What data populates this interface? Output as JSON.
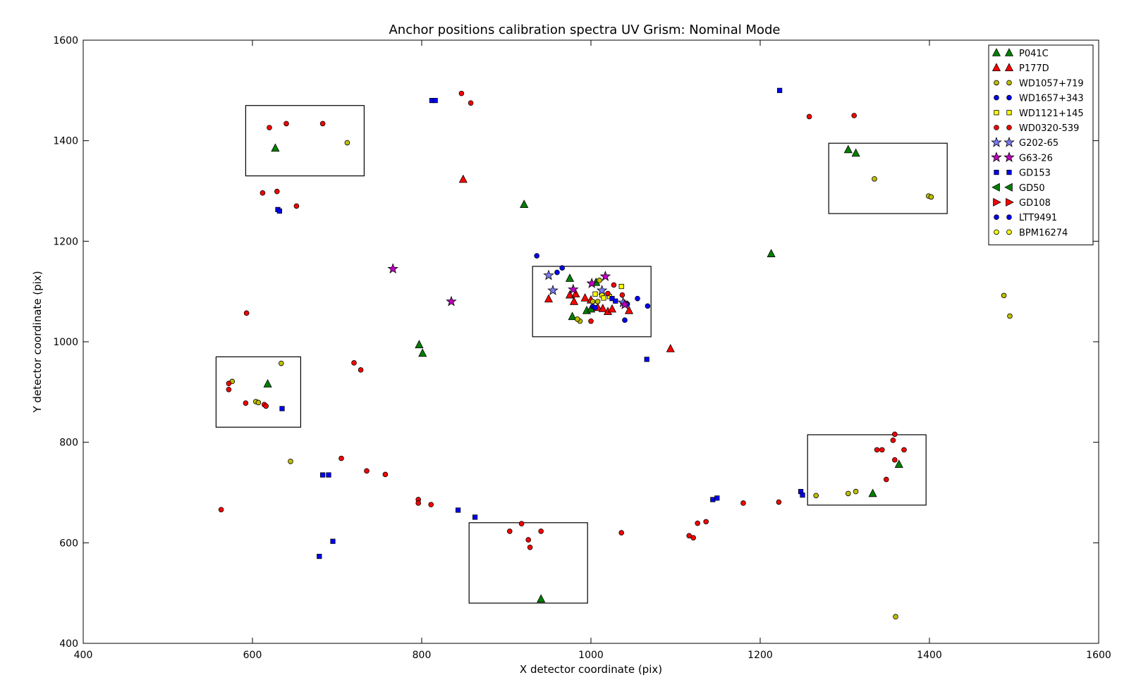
{
  "chart_data": {
    "type": "scatter",
    "title": "Anchor positions calibration spectra UV Grism: Nominal Mode",
    "xlabel": "X detector coordinate (pix)",
    "ylabel": "Y detector coordinate (pix)",
    "xlim": [
      400,
      1600
    ],
    "ylim": [
      400,
      1600
    ],
    "xticks": [
      400,
      600,
      800,
      1000,
      1200,
      1400,
      1600
    ],
    "yticks": [
      400,
      600,
      800,
      1000,
      1200,
      1400,
      1600
    ],
    "grid": false,
    "legend_position": "top-right",
    "series": [
      {
        "name": "P041C",
        "marker": "triangle-up",
        "color": "#008000",
        "points": [
          [
            627,
            1385
          ],
          [
            921,
            1273
          ],
          [
            1213,
            1175
          ],
          [
            1304,
            1382
          ],
          [
            1313,
            1375
          ],
          [
            618,
            916
          ],
          [
            797,
            994
          ],
          [
            801,
            977
          ],
          [
            975,
            1126
          ],
          [
            978,
            1050
          ],
          [
            995,
            1062
          ],
          [
            1000,
            1065
          ],
          [
            1006,
            1118
          ],
          [
            1333,
            698
          ],
          [
            1364,
            756
          ],
          [
            941,
            488
          ]
        ]
      },
      {
        "name": "P177D",
        "marker": "triangle-up",
        "color": "#ff0000",
        "points": [
          [
            849,
            1323
          ],
          [
            950,
            1085
          ],
          [
            975,
            1093
          ],
          [
            980,
            1080
          ],
          [
            982,
            1095
          ],
          [
            993,
            1087
          ],
          [
            1000,
            1083
          ],
          [
            1008,
            1068
          ],
          [
            1014,
            1066
          ],
          [
            1020,
            1060
          ],
          [
            1025,
            1065
          ],
          [
            1045,
            1062
          ],
          [
            1094,
            986
          ]
        ]
      },
      {
        "name": "WD1057+719",
        "marker": "circle",
        "color": "#bfbf00",
        "points": [
          [
            712,
            1396
          ],
          [
            1335,
            1324
          ],
          [
            1399,
            1290
          ],
          [
            1402,
            1288
          ],
          [
            576,
            921
          ],
          [
            634,
            957
          ],
          [
            604,
            881
          ],
          [
            607,
            879
          ],
          [
            645,
            762
          ],
          [
            987,
            1041
          ],
          [
            984,
            1045
          ],
          [
            1002,
            1080
          ],
          [
            1008,
            1080
          ],
          [
            1010,
            1122
          ],
          [
            1266,
            694
          ],
          [
            1304,
            698
          ],
          [
            1313,
            702
          ],
          [
            1488,
            1092
          ],
          [
            1495,
            1051
          ],
          [
            1360,
            453
          ]
        ]
      },
      {
        "name": "WD1657+343",
        "marker": "circle",
        "color": "#0000ff",
        "points": [
          [
            936,
            1171
          ],
          [
            960,
            1138
          ],
          [
            966,
            1147
          ],
          [
            1002,
            1070
          ],
          [
            1005,
            1068
          ],
          [
            1043,
            1075
          ],
          [
            1055,
            1086
          ],
          [
            1067,
            1071
          ],
          [
            1040,
            1043
          ]
        ]
      },
      {
        "name": "WD1121+145",
        "marker": "square",
        "color": "#ffff00",
        "points": [
          [
            1005,
            1095
          ],
          [
            1013,
            1093
          ],
          [
            1015,
            1087
          ],
          [
            1022,
            1090
          ],
          [
            1036,
            1110
          ]
        ]
      },
      {
        "name": "WD0320-539",
        "marker": "circle",
        "color": "#ff0000",
        "points": [
          [
            847,
            1494
          ],
          [
            858,
            1475
          ],
          [
            620,
            1426
          ],
          [
            640,
            1434
          ],
          [
            683,
            1434
          ],
          [
            1258,
            1448
          ],
          [
            1311,
            1450
          ],
          [
            612,
            1296
          ],
          [
            629,
            1299
          ],
          [
            652,
            1270
          ],
          [
            593,
            1057
          ],
          [
            720,
            958
          ],
          [
            728,
            944
          ],
          [
            572,
            917
          ],
          [
            572,
            905
          ],
          [
            592,
            878
          ],
          [
            614,
            875
          ],
          [
            616,
            872
          ],
          [
            705,
            768
          ],
          [
            735,
            743
          ],
          [
            757,
            736
          ],
          [
            796,
            686
          ],
          [
            796,
            679
          ],
          [
            811,
            676
          ],
          [
            563,
            666
          ],
          [
            904,
            623
          ],
          [
            918,
            638
          ],
          [
            926,
            606
          ],
          [
            928,
            591
          ],
          [
            941,
            623
          ],
          [
            1036,
            620
          ],
          [
            1116,
            614
          ],
          [
            1121,
            610
          ],
          [
            1126,
            639
          ],
          [
            1136,
            642
          ],
          [
            1180,
            679
          ],
          [
            1222,
            681
          ],
          [
            1338,
            785
          ],
          [
            1344,
            785
          ],
          [
            1357,
            804
          ],
          [
            1359,
            816
          ],
          [
            1359,
            765
          ],
          [
            1370,
            785
          ],
          [
            1349,
            726
          ],
          [
            1000,
            1041
          ],
          [
            1027,
            1113
          ],
          [
            1020,
            1096
          ],
          [
            1037,
            1093
          ]
        ]
      },
      {
        "name": "G202-65",
        "marker": "star",
        "color": "#7a7af0",
        "points": [
          [
            950,
            1132
          ],
          [
            955,
            1102
          ],
          [
            1013,
            1102
          ],
          [
            1038,
            1078
          ]
        ]
      },
      {
        "name": "G63-26",
        "marker": "star",
        "color": "#bf00bf",
        "points": [
          [
            766,
            1145
          ],
          [
            835,
            1080
          ],
          [
            979,
            1104
          ],
          [
            1001,
            1116
          ],
          [
            1017,
            1130
          ],
          [
            1040,
            1074
          ]
        ]
      },
      {
        "name": "GD153",
        "marker": "square",
        "color": "#0000ff",
        "points": [
          [
            812,
            1480
          ],
          [
            816,
            1480
          ],
          [
            1223,
            1500
          ],
          [
            630,
            1263
          ],
          [
            632,
            1260
          ],
          [
            1066,
            965
          ],
          [
            635,
            867
          ],
          [
            683,
            735
          ],
          [
            690,
            735
          ],
          [
            695,
            603
          ],
          [
            679,
            573
          ],
          [
            843,
            665
          ],
          [
            863,
            651
          ],
          [
            1144,
            686
          ],
          [
            1149,
            689
          ],
          [
            1248,
            702
          ],
          [
            1250,
            695
          ],
          [
            1025,
            1086
          ],
          [
            1029,
            1081
          ]
        ]
      },
      {
        "name": "GD50",
        "marker": "triangle-left",
        "color": "#008000",
        "points": []
      },
      {
        "name": "GD108",
        "marker": "triangle-right",
        "color": "#ff0000",
        "points": []
      },
      {
        "name": "LTT9491",
        "marker": "circle",
        "color": "#0000ff",
        "points": []
      },
      {
        "name": "BPM16274",
        "marker": "circle",
        "color": "#ffff00",
        "points": []
      }
    ],
    "boxes": [
      {
        "x0": 592,
        "x1": 732,
        "y0": 1330,
        "y1": 1470
      },
      {
        "x0": 1281,
        "x1": 1421,
        "y0": 1255,
        "y1": 1395
      },
      {
        "x0": 931,
        "x1": 1071,
        "y0": 1010,
        "y1": 1150
      },
      {
        "x0": 557,
        "x1": 657,
        "y0": 830,
        "y1": 970
      },
      {
        "x0": 1256,
        "x1": 1396,
        "y0": 675,
        "y1": 815
      },
      {
        "x0": 856,
        "x1": 996,
        "y0": 480,
        "y1": 640
      }
    ]
  }
}
